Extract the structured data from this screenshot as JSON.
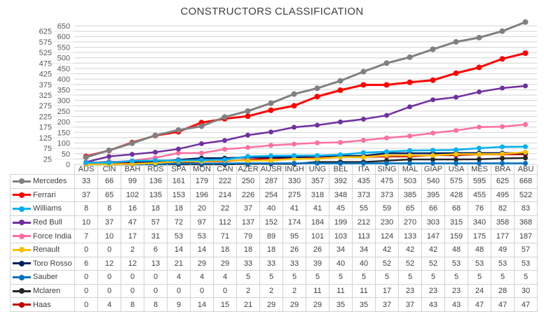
{
  "chart_data": {
    "type": "line",
    "title": "CONSTRUCTORS CLASSIFICATION",
    "categories": [
      "AUS",
      "CIN",
      "BAH",
      "RUS",
      "SPA",
      "MON",
      "CAN",
      "AZER",
      "AUSR",
      "INGH",
      "UNG",
      "BEL",
      "ITA",
      "SING",
      "MAL",
      "GIAP",
      "USA",
      "MES",
      "BRA",
      "ABU"
    ],
    "ylim": [
      0,
      650
    ],
    "yticks": [
      0,
      25,
      50,
      75,
      100,
      125,
      150,
      175,
      200,
      225,
      250,
      275,
      300,
      325,
      350,
      375,
      400,
      425,
      450,
      475,
      500,
      525,
      550,
      575,
      600,
      625,
      650
    ],
    "grid": true,
    "legend": "data-table-below",
    "series": [
      {
        "name": "Mercedes",
        "color": "#808080",
        "values": [
          33,
          66,
          99,
          136,
          161,
          179,
          222,
          250,
          287,
          330,
          357,
          392,
          435,
          475,
          503,
          540,
          575,
          595,
          625,
          668
        ]
      },
      {
        "name": "Ferrari",
        "color": "#ff0000",
        "values": [
          37,
          65,
          102,
          135,
          153,
          196,
          214,
          226,
          254,
          275,
          318,
          348,
          373,
          373,
          385,
          395,
          428,
          455,
          495,
          522
        ]
      },
      {
        "name": "Williams",
        "color": "#00b0f0",
        "values": [
          8,
          8,
          16,
          18,
          18,
          20,
          22,
          37,
          40,
          41,
          41,
          45,
          55,
          59,
          65,
          66,
          68,
          76,
          82,
          83
        ]
      },
      {
        "name": "Red Bull",
        "color": "#7030a0",
        "values": [
          10,
          37,
          47,
          57,
          72,
          97,
          112,
          137,
          152,
          174,
          184,
          199,
          212,
          230,
          270,
          303,
          315,
          340,
          358,
          368
        ]
      },
      {
        "name": "Force India",
        "color": "#ff6f9f",
        "values": [
          7,
          10,
          17,
          31,
          53,
          53,
          71,
          79,
          89,
          95,
          101,
          103,
          113,
          124,
          133,
          147,
          159,
          175,
          177,
          187
        ]
      },
      {
        "name": "Renault",
        "color": "#ffc000",
        "values": [
          0,
          0,
          2,
          6,
          14,
          14,
          18,
          18,
          18,
          26,
          26,
          34,
          34,
          42,
          42,
          42,
          48,
          48,
          49,
          57
        ]
      },
      {
        "name": "Toro Rosso",
        "color": "#002060",
        "values": [
          6,
          12,
          12,
          13,
          21,
          29,
          29,
          33,
          33,
          33,
          39,
          40,
          40,
          52,
          52,
          52,
          53,
          53,
          53,
          53
        ]
      },
      {
        "name": "Sauber",
        "color": "#0070c0",
        "values": [
          0,
          0,
          0,
          0,
          4,
          4,
          4,
          5,
          5,
          5,
          5,
          5,
          5,
          5,
          5,
          5,
          5,
          5,
          5,
          5
        ]
      },
      {
        "name": "Mclaren",
        "color": "#262626",
        "values": [
          0,
          0,
          0,
          0,
          0,
          0,
          0,
          2,
          2,
          2,
          11,
          11,
          11,
          17,
          23,
          23,
          23,
          24,
          28,
          30
        ]
      },
      {
        "name": "Haas",
        "color": "#c00000",
        "values": [
          0,
          4,
          8,
          8,
          9,
          14,
          15,
          21,
          29,
          29,
          29,
          35,
          35,
          37,
          37,
          43,
          43,
          47,
          47,
          47
        ]
      }
    ]
  }
}
